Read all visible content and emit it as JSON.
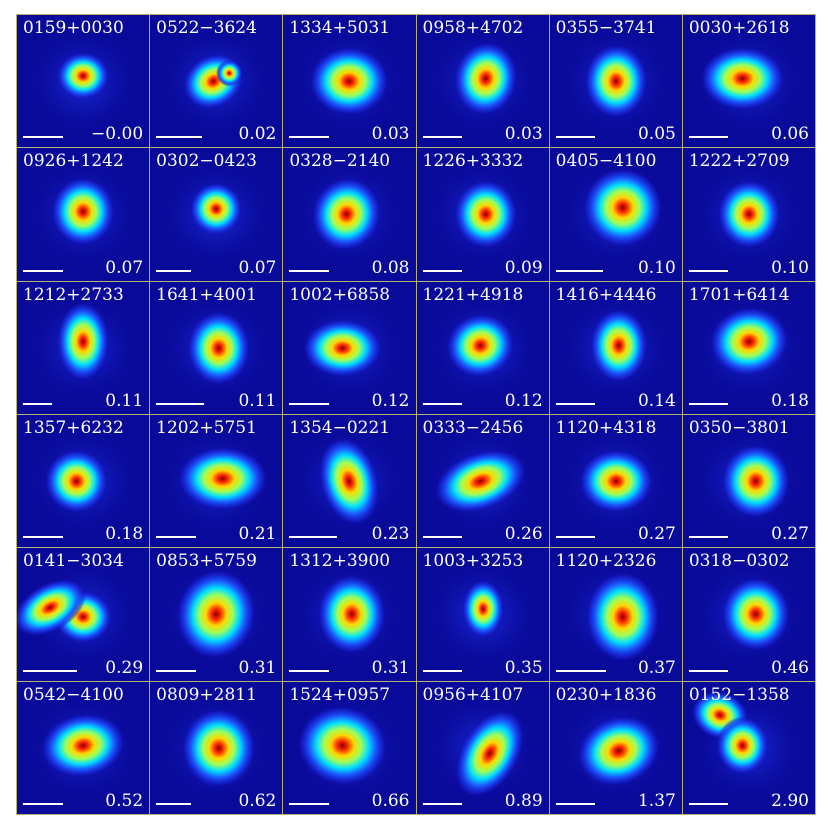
{
  "panels": [
    {
      "name": "0159+0030",
      "z": "−0.00",
      "bar": 0.3
    },
    {
      "name": "0522−3624",
      "z": "0.02",
      "bar": 0.35
    },
    {
      "name": "1334+5031",
      "z": "0.03",
      "bar": 0.3
    },
    {
      "name": "0958+4702",
      "z": "0.03",
      "bar": 0.3
    },
    {
      "name": "0355−3741",
      "z": "0.05",
      "bar": 0.3
    },
    {
      "name": "0030+2618",
      "z": "0.06",
      "bar": 0.3
    },
    {
      "name": "0926+1242",
      "z": "0.07",
      "bar": 0.3
    },
    {
      "name": "0302−0423",
      "z": "0.07",
      "bar": 0.26
    },
    {
      "name": "0328−2140",
      "z": "0.08",
      "bar": 0.3
    },
    {
      "name": "1226+3332",
      "z": "0.09",
      "bar": 0.3
    },
    {
      "name": "0405−4100",
      "z": "0.10",
      "bar": 0.36
    },
    {
      "name": "1222+2709",
      "z": "0.10",
      "bar": 0.3
    },
    {
      "name": "1212+2733",
      "z": "0.11",
      "bar": 0.22
    },
    {
      "name": "1641+4001",
      "z": "0.11",
      "bar": 0.36
    },
    {
      "name": "1002+6858",
      "z": "0.12",
      "bar": 0.3
    },
    {
      "name": "1221+4918",
      "z": "0.12",
      "bar": 0.3
    },
    {
      "name": "1416+4446",
      "z": "0.14",
      "bar": 0.3
    },
    {
      "name": "1701+6414",
      "z": "0.18",
      "bar": 0.3
    },
    {
      "name": "1357+6232",
      "z": "0.18",
      "bar": 0.3
    },
    {
      "name": "1202+5751",
      "z": "0.21",
      "bar": 0.3
    },
    {
      "name": "1354−0221",
      "z": "0.23",
      "bar": 0.36
    },
    {
      "name": "0333−2456",
      "z": "0.26",
      "bar": 0.3
    },
    {
      "name": "1120+4318",
      "z": "0.27",
      "bar": 0.3
    },
    {
      "name": "0350−3801",
      "z": "0.27",
      "bar": 0.3
    },
    {
      "name": "0141−3034",
      "z": "0.29",
      "bar": 0.41
    },
    {
      "name": "0853+5759",
      "z": "0.31",
      "bar": 0.3
    },
    {
      "name": "1312+3900",
      "z": "0.31",
      "bar": 0.3
    },
    {
      "name": "1003+3253",
      "z": "0.35",
      "bar": 0.3
    },
    {
      "name": "1120+2326",
      "z": "0.37",
      "bar": 0.38
    },
    {
      "name": "0318−0302",
      "z": "0.46",
      "bar": 0.3
    },
    {
      "name": "0542−4100",
      "z": "0.52",
      "bar": 0.3
    },
    {
      "name": "0809+2811",
      "z": "0.62",
      "bar": 0.26
    },
    {
      "name": "1524+0957",
      "z": "0.66",
      "bar": 0.3
    },
    {
      "name": "0956+4107",
      "z": "0.89",
      "bar": 0.3
    },
    {
      "name": "0230+1836",
      "z": "1.37",
      "bar": 0.3
    },
    {
      "name": "0152−1358",
      "z": "2.90",
      "bar": 0.3
    }
  ]
}
